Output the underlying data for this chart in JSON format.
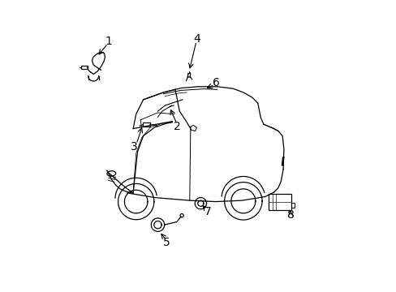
{
  "background_color": "#ffffff",
  "line_color": "#000000",
  "text_color": "#000000",
  "fig_width": 4.89,
  "fig_height": 3.6,
  "dpi": 100,
  "label_fontsize": 10
}
